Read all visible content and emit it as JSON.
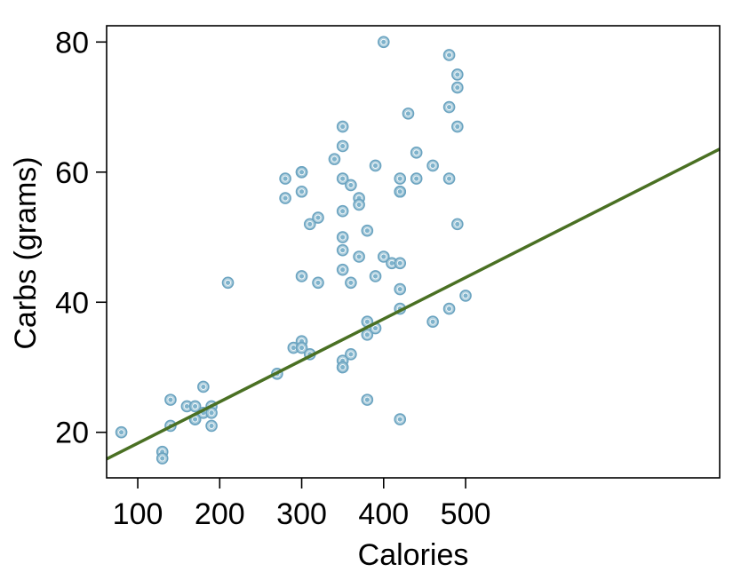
{
  "chart_data": {
    "type": "scatter",
    "xlabel": "Calories",
    "ylabel": "Carbs (grams)",
    "xlim": [
      62,
      810
    ],
    "ylim": [
      13,
      82.5
    ],
    "x_ticks": [
      100,
      200,
      300,
      400,
      500
    ],
    "y_ticks": [
      20,
      40,
      60,
      80
    ],
    "grid": false,
    "points": [
      [
        80,
        20
      ],
      [
        130,
        17
      ],
      [
        130,
        16
      ],
      [
        140,
        25
      ],
      [
        140,
        21
      ],
      [
        160,
        24
      ],
      [
        170,
        24
      ],
      [
        170,
        22
      ],
      [
        170,
        22
      ],
      [
        180,
        27
      ],
      [
        180,
        23
      ],
      [
        190,
        24
      ],
      [
        190,
        23
      ],
      [
        190,
        21
      ],
      [
        210,
        43
      ],
      [
        270,
        29
      ],
      [
        280,
        59
      ],
      [
        280,
        56
      ],
      [
        290,
        33
      ],
      [
        300,
        60
      ],
      [
        300,
        60
      ],
      [
        300,
        57
      ],
      [
        300,
        44
      ],
      [
        300,
        34
      ],
      [
        300,
        33
      ],
      [
        310,
        52
      ],
      [
        310,
        32
      ],
      [
        320,
        53
      ],
      [
        320,
        43
      ],
      [
        340,
        62
      ],
      [
        350,
        67
      ],
      [
        350,
        64
      ],
      [
        350,
        59
      ],
      [
        350,
        54
      ],
      [
        350,
        50
      ],
      [
        350,
        48
      ],
      [
        350,
        45
      ],
      [
        350,
        31
      ],
      [
        350,
        30
      ],
      [
        350,
        30
      ],
      [
        360,
        58
      ],
      [
        360,
        43
      ],
      [
        360,
        32
      ],
      [
        370,
        56
      ],
      [
        370,
        55
      ],
      [
        370,
        47
      ],
      [
        380,
        51
      ],
      [
        380,
        37
      ],
      [
        380,
        35
      ],
      [
        380,
        25
      ],
      [
        390,
        61
      ],
      [
        390,
        44
      ],
      [
        390,
        36
      ],
      [
        400,
        80
      ],
      [
        400,
        47
      ],
      [
        410,
        46
      ],
      [
        420,
        59
      ],
      [
        420,
        57
      ],
      [
        420,
        57
      ],
      [
        420,
        46
      ],
      [
        420,
        42
      ],
      [
        420,
        39
      ],
      [
        420,
        22
      ],
      [
        430,
        69
      ],
      [
        440,
        63
      ],
      [
        440,
        59
      ],
      [
        460,
        61
      ],
      [
        460,
        37
      ],
      [
        480,
        78
      ],
      [
        480,
        70
      ],
      [
        480,
        59
      ],
      [
        480,
        39
      ],
      [
        490,
        75
      ],
      [
        490,
        73
      ],
      [
        490,
        67
      ],
      [
        490,
        52
      ],
      [
        500,
        41
      ]
    ],
    "trend_line": {
      "intercept": 11.95,
      "slope": 0.0637,
      "color": "#4a7023"
    },
    "point_color": "#6aa3c0"
  }
}
